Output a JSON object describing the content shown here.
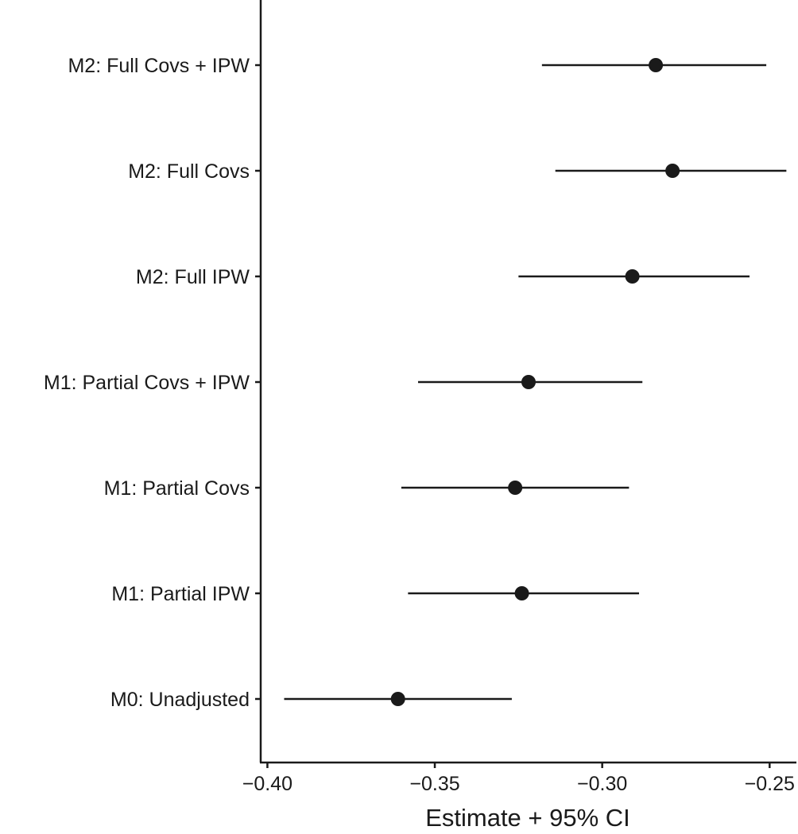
{
  "chart_data": {
    "type": "forest",
    "title": "",
    "xlabel": "Estimate + 95% CI",
    "ylabel": "",
    "xlim": [
      -0.402,
      -0.242
    ],
    "xticks": [
      -0.4,
      -0.35,
      -0.3,
      -0.25
    ],
    "xtick_labels": [
      "−0.40",
      "−0.35",
      "−0.30",
      "−0.25"
    ],
    "grid": false,
    "legend": "none",
    "categories": [
      "M2: Full Covs + IPW",
      "M2: Full Covs",
      "M2: Full IPW",
      "M1: Partial Covs + IPW",
      "M1: Partial Covs",
      "M1: Partial IPW",
      "M0: Unadjusted"
    ],
    "estimates": [
      -0.284,
      -0.279,
      -0.291,
      -0.322,
      -0.326,
      -0.324,
      -0.361
    ],
    "ci_lower": [
      -0.318,
      -0.314,
      -0.325,
      -0.355,
      -0.36,
      -0.358,
      -0.395
    ],
    "ci_upper": [
      -0.251,
      -0.245,
      -0.256,
      -0.288,
      -0.292,
      -0.289,
      -0.327
    ],
    "colors": {
      "marker": "#1a1a1a",
      "line": "#1a1a1a",
      "axis": "#1a1a1a"
    }
  }
}
